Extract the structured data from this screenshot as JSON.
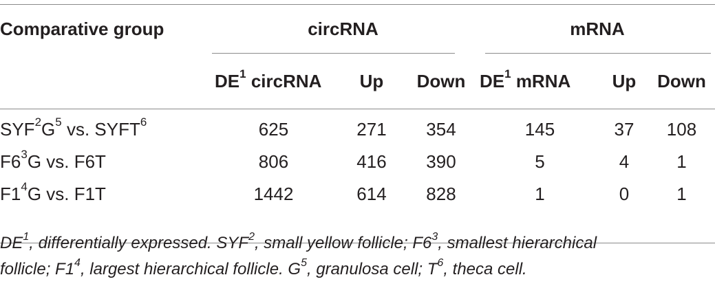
{
  "table": {
    "header": {
      "group_label": "Comparative group",
      "circrna_label": "circRNA",
      "mrna_label": "mRNA"
    },
    "subheader": {
      "de_circ_prefix": "DE",
      "de_circ_sup": "1",
      "de_circ_suffix": " circRNA",
      "up_circ": "Up",
      "down_circ": "Down",
      "de_mrna_prefix": "DE",
      "de_mrna_sup": "1",
      "de_mrna_suffix": " mRNA",
      "up_mrna": "Up",
      "down_mrna": "Down"
    },
    "rows": [
      {
        "label_parts": [
          "SYF",
          "2",
          "G",
          "5",
          " vs. SYFT",
          "6"
        ],
        "de_circ": "625",
        "up_circ": "271",
        "down_circ": "354",
        "de_mrna": "145",
        "up_mrna": "37",
        "down_mrna": "108"
      },
      {
        "label_parts": [
          "F6",
          "3",
          "G vs. F6T",
          "",
          "",
          ""
        ],
        "de_circ": "806",
        "up_circ": "416",
        "down_circ": "390",
        "de_mrna": "5",
        "up_mrna": "4",
        "down_mrna": "1"
      },
      {
        "label_parts": [
          "F1",
          "4",
          "G vs. F1T",
          "",
          "",
          ""
        ],
        "de_circ": "1442",
        "up_circ": "614",
        "down_circ": "828",
        "de_mrna": "1",
        "up_mrna": "0",
        "down_mrna": "1"
      }
    ]
  },
  "footnote": {
    "line1": {
      "p1": "DE",
      "s1": "1",
      "p2": ", differentially expressed. SYF",
      "s2": "2",
      "p3": ", small yellow follicle; F6",
      "s3": "3",
      "p4": ", smallest hierarchical"
    },
    "line2": {
      "p1": "follicle; F1",
      "s1": "4",
      "p2": ", largest hierarchical follicle. G",
      "s2": "5",
      "p3": ", granulosa cell; T",
      "s3": "6",
      "p4": ", theca cell."
    }
  }
}
